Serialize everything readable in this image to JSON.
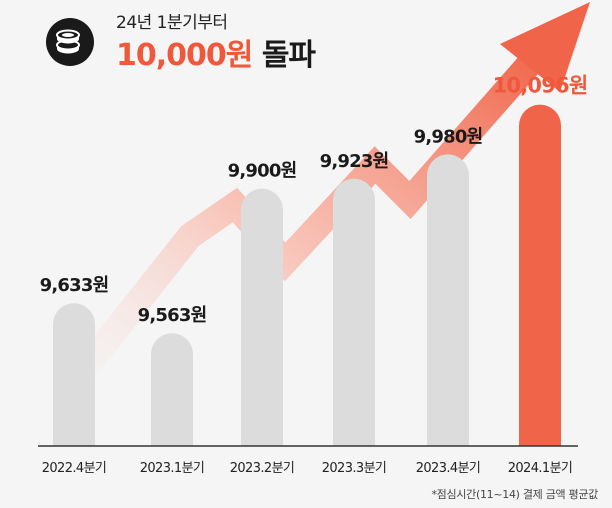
{
  "header": {
    "subtitle": "24년 1분기부터",
    "title_accent": "10,000원",
    "title_rest": " 돌파",
    "icon": "coins-icon"
  },
  "footnote": "*점심시간(11~14) 결제 금액 평균값",
  "colors": {
    "bar_default": "#dcdcdc",
    "bar_highlight": "#f0654a",
    "accent": "#f0583c",
    "arrow": "#f5a090"
  },
  "chart_data": {
    "type": "bar",
    "categories": [
      "2022.4분기",
      "2023.1분기",
      "2023.2분기",
      "2023.3분기",
      "2023.4분기",
      "2024.1분기"
    ],
    "values": [
      9633,
      9563,
      9900,
      9923,
      9980,
      10096
    ],
    "data_labels": [
      "9,633원",
      "9,563원",
      "9,900원",
      "9,923원",
      "9,980원",
      "10,096원"
    ],
    "highlight_index": 5,
    "title": "",
    "xlabel": "",
    "ylabel": "",
    "ylim": [
      9300,
      10200
    ],
    "grid": false,
    "legend": "none"
  }
}
